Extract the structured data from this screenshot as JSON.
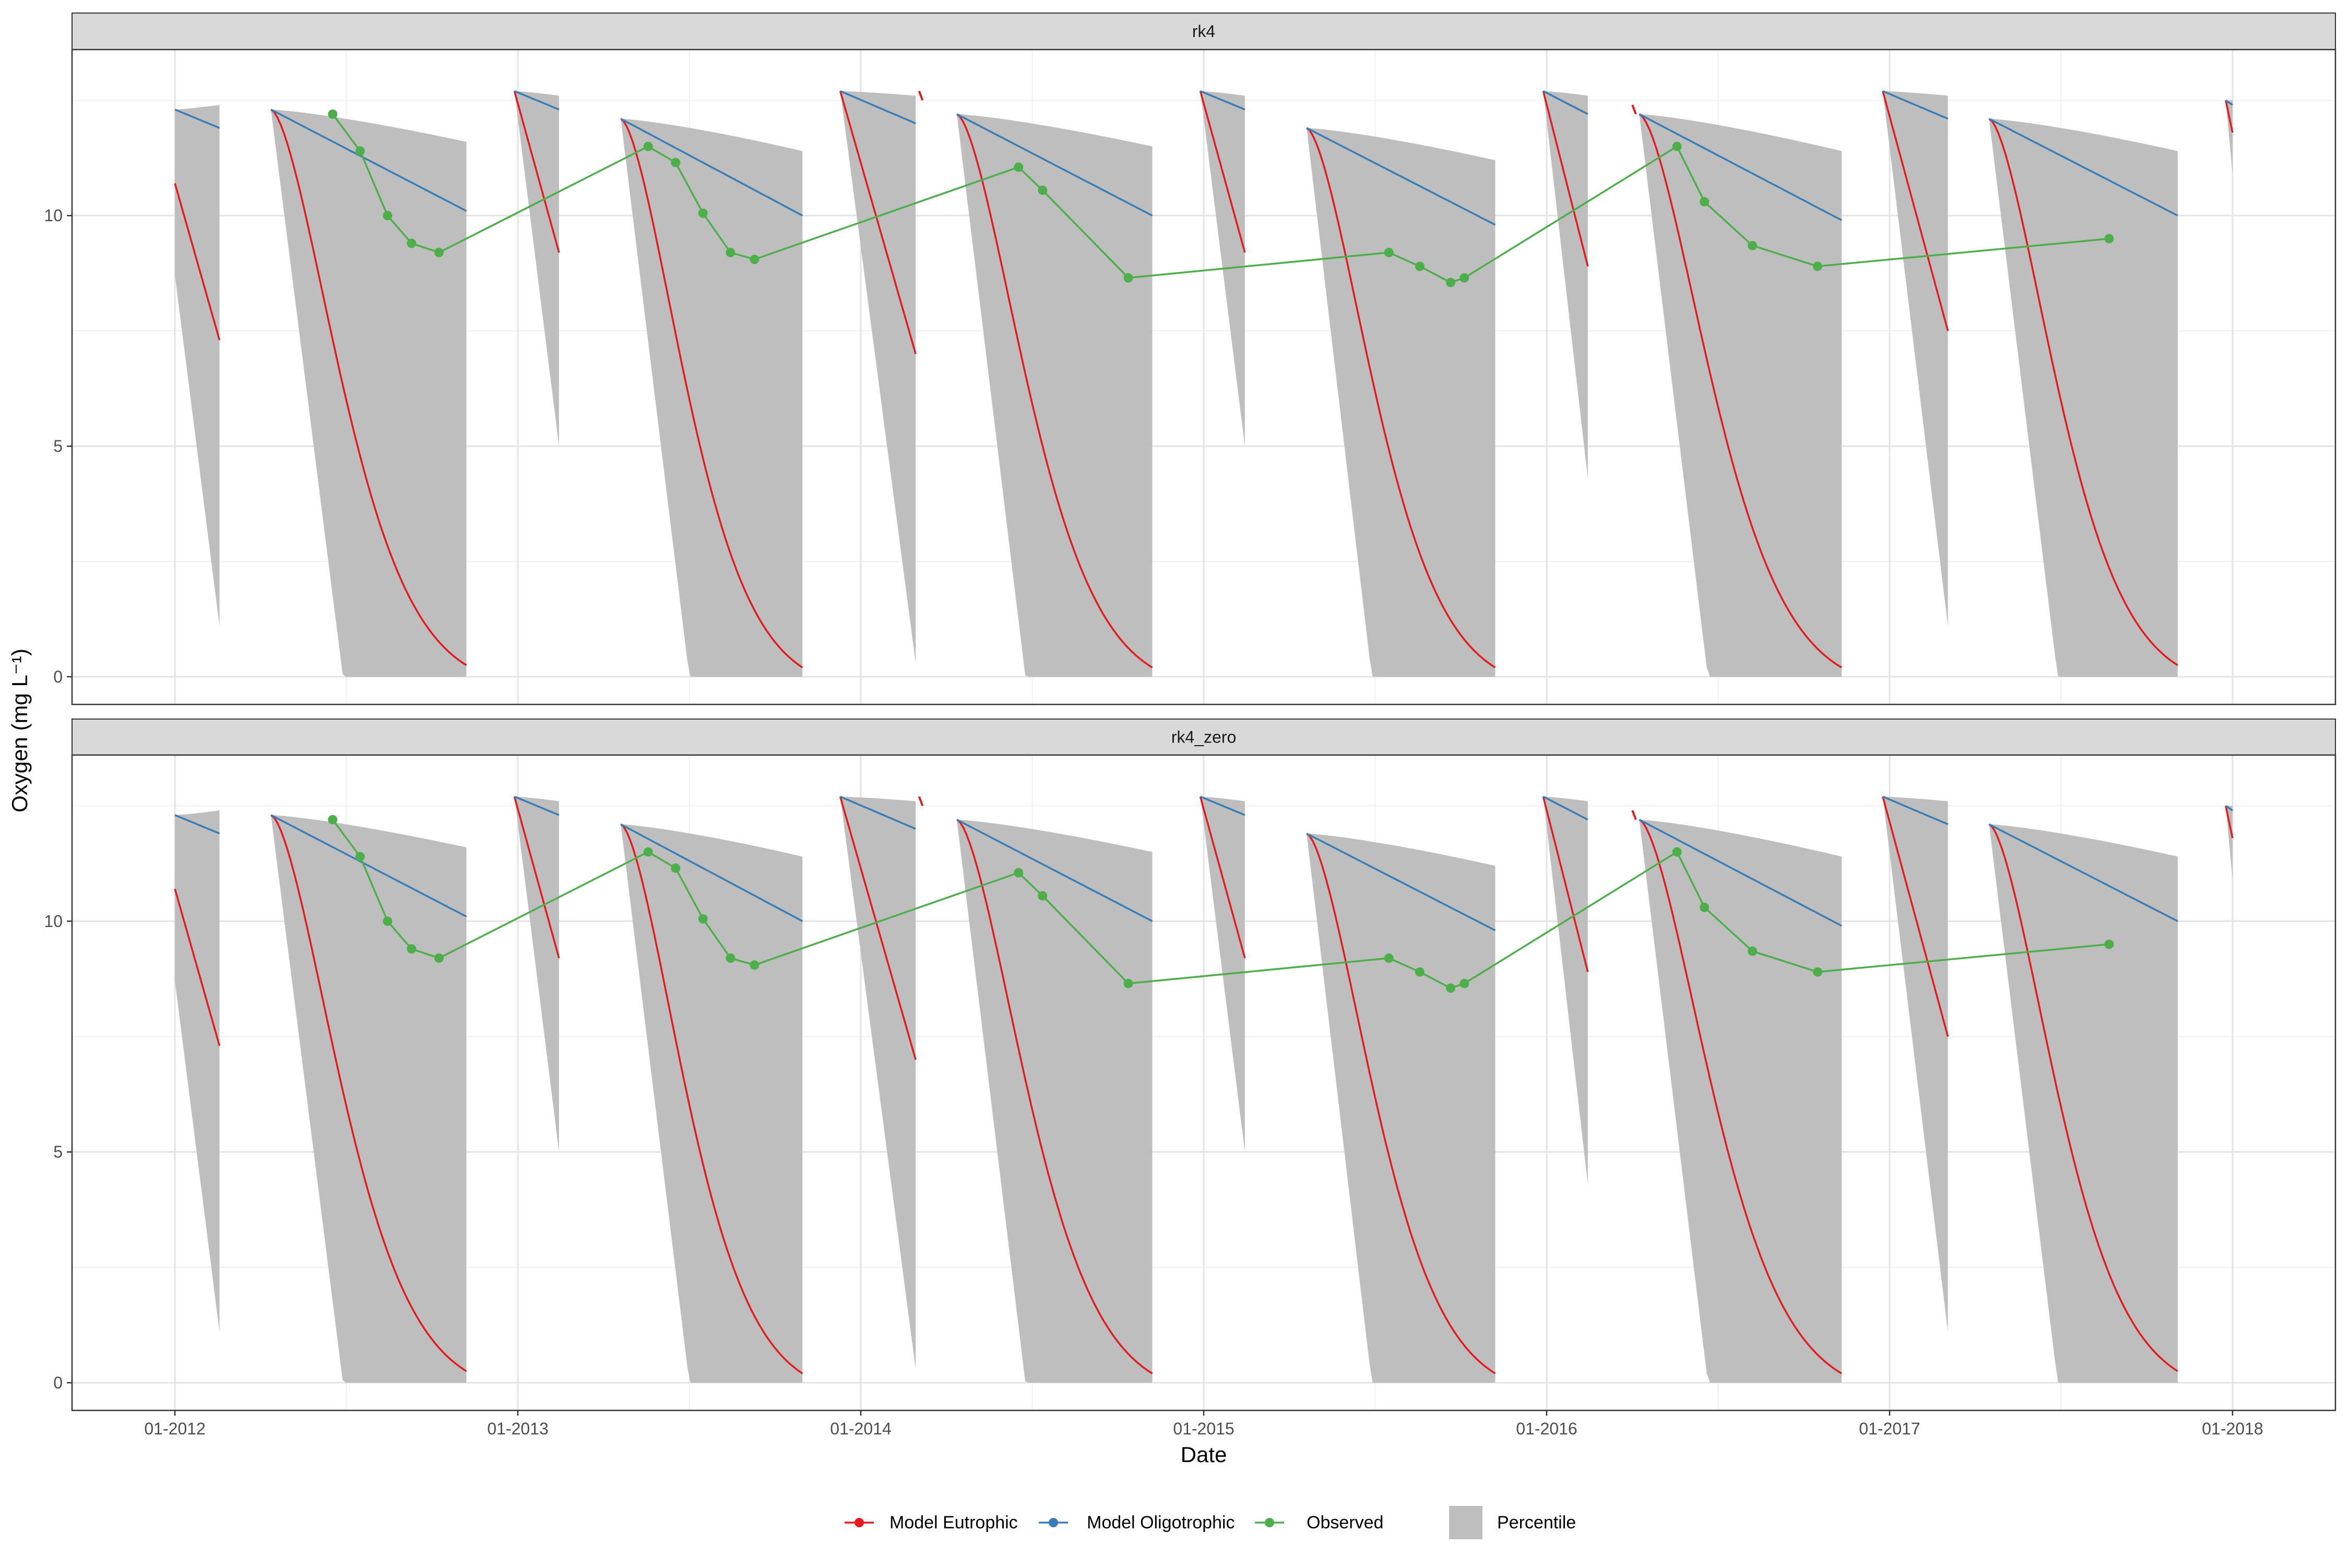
{
  "chart_data": {
    "type": "line",
    "xlabel": "Date",
    "ylabel": "Oxygen (mg L⁻¹)",
    "x_ticks": [
      "01-2012",
      "01-2013",
      "01-2014",
      "01-2015",
      "01-2016",
      "01-2017",
      "01-2018"
    ],
    "x_tick_years": [
      2012,
      2013,
      2014,
      2015,
      2016,
      2017,
      2018
    ],
    "xlim": [
      2011.7,
      2018.3
    ],
    "y_ticks": [
      0,
      5,
      10
    ],
    "ylim": [
      -0.6,
      13.6
    ],
    "grid": true,
    "legend_position": "bottom",
    "legend": [
      {
        "label": "Model Eutrophic",
        "color": "#e41a1c",
        "kind": "line-point"
      },
      {
        "label": "Model Oligotrophic",
        "color": "#377eb8",
        "kind": "line-point"
      },
      {
        "label": "Observed",
        "color": "#4daf4a",
        "kind": "line-point"
      },
      {
        "label": "Percentile",
        "color": "#bebebe",
        "kind": "fill"
      }
    ],
    "panels": [
      {
        "title": "rk4"
      },
      {
        "title": "rk4_zero"
      }
    ],
    "segments": [
      {
        "start": 2012.0,
        "end": 2012.13,
        "init": 12.3,
        "olig_end": 11.9,
        "eut_start": 10.7,
        "eut_end": 7.3,
        "band_top_end": 12.4,
        "band_bot_start": 8.7,
        "band_bot_end": 1.1,
        "shape": "linear"
      },
      {
        "start": 2012.28,
        "end": 2012.85,
        "init": 12.3,
        "olig_end": 10.1,
        "eut_end": 0.25,
        "band_top_end": 11.6,
        "band_bot_end": 0.0,
        "band_bot_zero_at": 2012.49,
        "shape": "sigmoid"
      },
      {
        "start": 2012.99,
        "end": 2013.12,
        "init": 12.7,
        "olig_end": 12.3,
        "eut_end": 9.2,
        "band_top_end": 12.6,
        "band_bot_end": 5.0,
        "shape": "linear"
      },
      {
        "start": 2013.3,
        "end": 2013.83,
        "init": 12.1,
        "olig_end": 10.0,
        "eut_end": 0.2,
        "band_top_end": 11.4,
        "band_bot_end": 0.0,
        "band_bot_zero_at": 2013.5,
        "shape": "sigmoid"
      },
      {
        "start": 2013.94,
        "end": 2014.16,
        "init": 12.7,
        "olig_end": 12.0,
        "eut_end": 7.0,
        "band_top_end": 12.6,
        "band_bot_end": 0.3,
        "shape": "linear"
      },
      {
        "start": 2014.28,
        "end": 2014.85,
        "init": 12.2,
        "olig_end": 10.0,
        "eut_end": 0.2,
        "band_top_end": 11.5,
        "band_bot_end": 0.0,
        "band_bot_zero_at": 2014.48,
        "shape": "sigmoid"
      },
      {
        "start": 2014.99,
        "end": 2015.12,
        "init": 12.7,
        "olig_end": 12.3,
        "eut_end": 9.2,
        "band_top_end": 12.6,
        "band_bot_end": 5.0,
        "shape": "linear"
      },
      {
        "start": 2015.3,
        "end": 2015.85,
        "init": 11.9,
        "olig_end": 9.8,
        "eut_end": 0.2,
        "band_top_end": 11.2,
        "band_bot_end": 0.0,
        "band_bot_zero_at": 2015.49,
        "shape": "sigmoid"
      },
      {
        "start": 2015.99,
        "end": 2016.12,
        "init": 12.7,
        "olig_end": 12.2,
        "eut_end": 8.9,
        "band_top_end": 12.6,
        "band_bot_end": 4.3,
        "shape": "linear"
      },
      {
        "start": 2016.27,
        "end": 2016.86,
        "init": 12.2,
        "olig_end": 9.9,
        "eut_end": 0.2,
        "band_top_end": 11.4,
        "band_bot_end": 0.0,
        "band_bot_zero_at": 2016.47,
        "shape": "sigmoid"
      },
      {
        "start": 2016.98,
        "end": 2017.17,
        "init": 12.7,
        "olig_end": 12.1,
        "eut_end": 7.5,
        "band_top_end": 12.6,
        "band_bot_end": 1.1,
        "shape": "linear"
      },
      {
        "start": 2017.29,
        "end": 2017.84,
        "init": 12.1,
        "olig_end": 10.0,
        "eut_end": 0.25,
        "band_top_end": 11.4,
        "band_bot_end": 0.0,
        "band_bot_zero_at": 2017.49,
        "shape": "sigmoid"
      },
      {
        "start": 2017.98,
        "end": 2018.0,
        "init": 12.5,
        "olig_end": 12.4,
        "eut_end": 11.8,
        "band_top_end": 12.5,
        "band_bot_end": 10.9,
        "shape": "linear"
      }
    ],
    "eutrophic_fragments": [
      {
        "x": [
          2014.17,
          2014.18
        ],
        "y": [
          12.7,
          12.5
        ]
      },
      {
        "x": [
          2016.25,
          2016.26
        ],
        "y": [
          12.4,
          12.2
        ]
      }
    ],
    "observed": {
      "x": [
        2012.46,
        2012.54,
        2012.62,
        2012.69,
        2012.77,
        2013.38,
        2013.46,
        2013.54,
        2013.62,
        2013.69,
        2014.46,
        2014.53,
        2014.78,
        2015.54,
        2015.63,
        2015.72,
        2015.76,
        2016.38,
        2016.46,
        2016.6,
        2016.79,
        2017.64
      ],
      "y": [
        12.2,
        11.4,
        10.0,
        9.4,
        9.2,
        11.5,
        11.15,
        10.05,
        9.2,
        9.05,
        11.05,
        10.55,
        8.65,
        9.2,
        8.9,
        8.55,
        8.65,
        11.5,
        10.3,
        9.35,
        8.9,
        9.5
      ]
    }
  }
}
